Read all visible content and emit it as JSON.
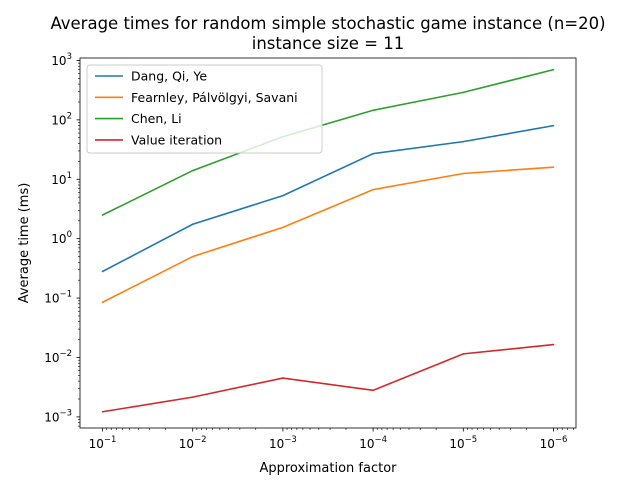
{
  "chart_data": {
    "type": "line",
    "title_line1": "Average times for random simple stochastic game instance (n=20)",
    "title_line2": "instance size = 11",
    "xlabel": "Approximation factor",
    "ylabel": "Average time (ms)",
    "x": [
      0.1,
      0.01,
      0.001,
      0.0001,
      1e-05,
      1e-06
    ],
    "x_tick_exponents": [
      "−1",
      "−2",
      "−3",
      "−4",
      "−5",
      "−6"
    ],
    "y_tick_exponents": [
      "−3",
      "−2",
      "−1",
      "0",
      "1",
      "2",
      "3"
    ],
    "log_base": "10",
    "x_scale": "log, reversed",
    "y_scale": "log",
    "ylim": [
      0.00065,
      1100
    ],
    "legend_position": "upper-left",
    "grid": false,
    "series": [
      {
        "name": "Dang, Qi, Ye",
        "color": "#1f77b4",
        "values": [
          0.28,
          1.75,
          5.3,
          27,
          43,
          80
        ]
      },
      {
        "name": "Fearnley, Pálvölgyi, Savani",
        "color": "#ff7f0e",
        "values": [
          0.085,
          0.5,
          1.55,
          6.7,
          12.5,
          16
        ]
      },
      {
        "name": "Chen, Li",
        "color": "#2ca02c",
        "values": [
          2.5,
          14,
          52,
          145,
          290,
          700
        ]
      },
      {
        "name": "Value iteration",
        "color": "#d62728",
        "values": [
          0.00122,
          0.00215,
          0.0045,
          0.0028,
          0.0115,
          0.0165
        ]
      }
    ]
  }
}
